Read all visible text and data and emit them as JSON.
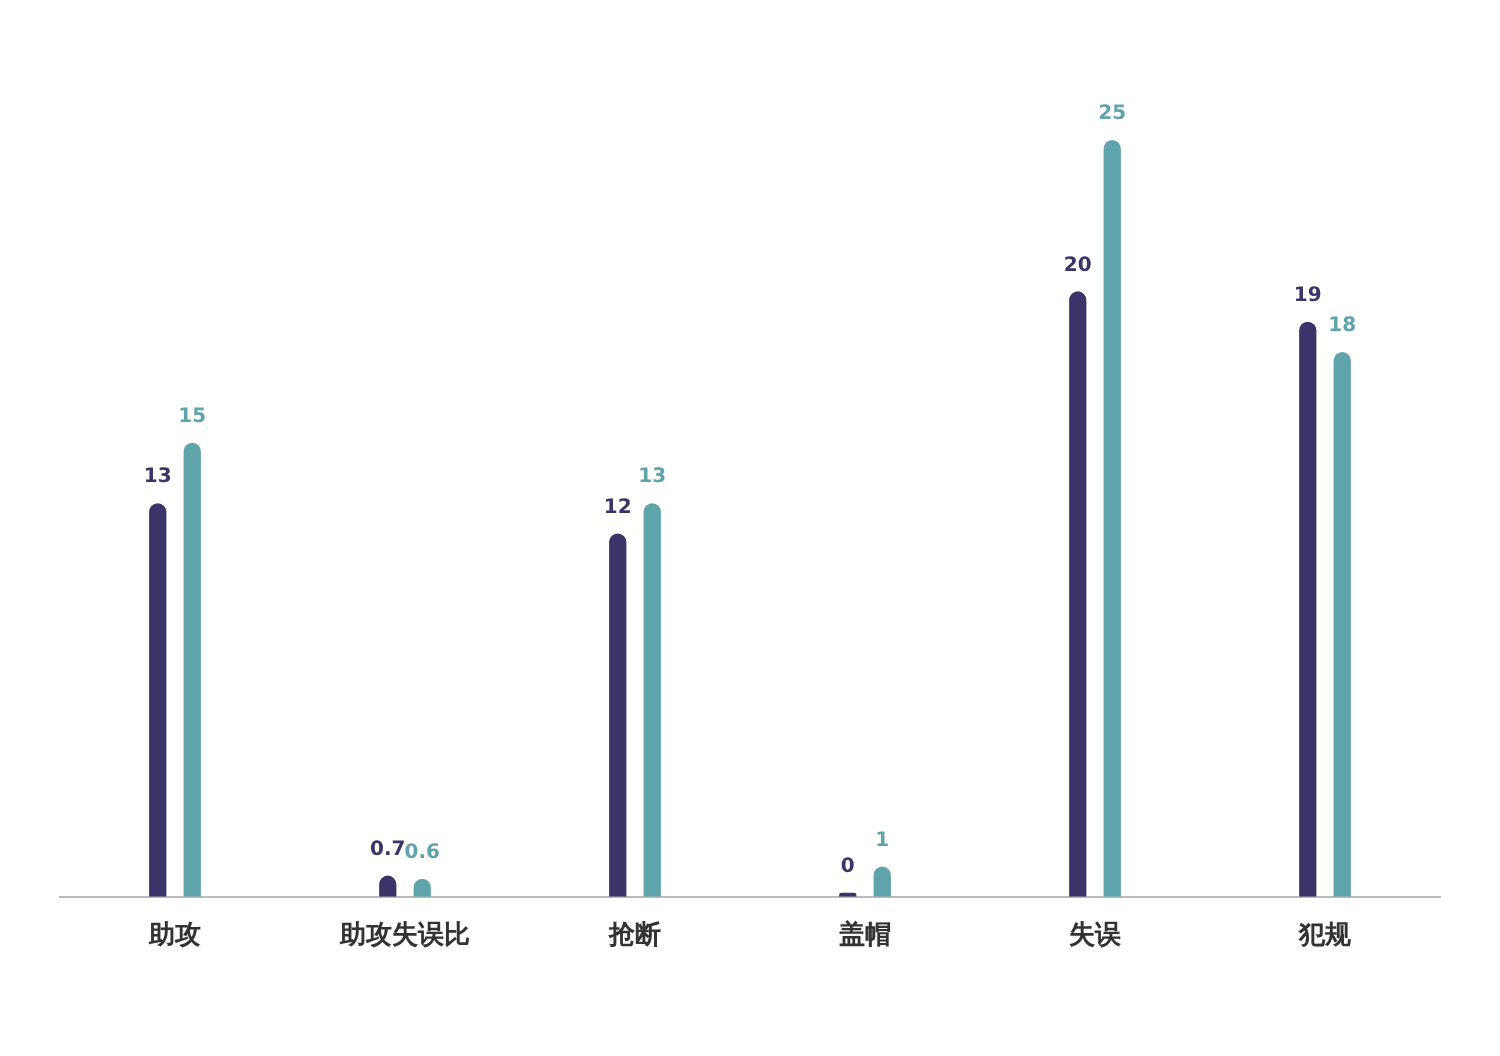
{
  "chart_data": {
    "type": "bar",
    "categories": [
      "助攻",
      "助攻失误比",
      "抢断",
      "盖帽",
      "失误",
      "犯规"
    ],
    "series": [
      {
        "color": "#3a3468",
        "values": [
          13,
          0.7,
          12,
          0,
          20,
          19
        ]
      },
      {
        "color": "#5fa4ab",
        "values": [
          15,
          0.6,
          13,
          1,
          25,
          18
        ]
      }
    ],
    "data_labels": true,
    "grid": false,
    "legend": false
  }
}
